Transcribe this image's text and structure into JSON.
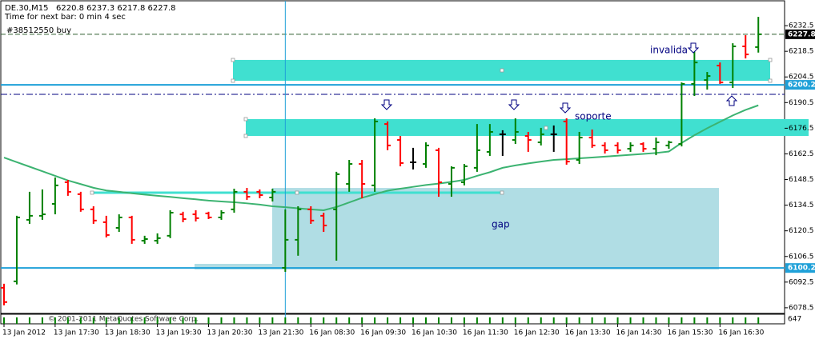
{
  "chart_data": {
    "type": "ohlc",
    "title": "DE.30,M15",
    "ohlc_text": "6220.8 6237.3 6217.8 6227.8",
    "timer": "Time for next bar: 0 min 4 sec",
    "order": "#38512550 buy",
    "copyright": "© 2001-2011 MetaQuotes Software Corp.",
    "subwindow_label": "647",
    "annotations": {
      "invalida": "invalida",
      "soporte": "soporte",
      "gap": "gap"
    },
    "up_color": "#008000",
    "down_color": "#ff0000",
    "doji_color": "#000000",
    "categories": [
      "13 Jan 2012",
      null,
      null,
      null,
      "13 Jan 17:30",
      null,
      null,
      null,
      "13 Jan 18:30",
      null,
      null,
      null,
      "13 Jan 19:30",
      null,
      null,
      null,
      "13 Jan 20:30",
      null,
      null,
      null,
      "13 Jan 21:30",
      null,
      null,
      null,
      "16 Jan 08:30",
      null,
      null,
      null,
      "16 Jan 09:30",
      null,
      null,
      null,
      "16 Jan 10:30",
      null,
      null,
      null,
      "16 Jan 11:30",
      null,
      null,
      null,
      "16 Jan 12:30",
      null,
      null,
      null,
      "16 Jan 13:30",
      null,
      null,
      null,
      "16 Jan 14:30",
      null,
      null,
      null,
      "16 Jan 15:30",
      null,
      null,
      null,
      "16 Jan 16:30",
      null,
      null,
      null
    ],
    "open": [
      6089.4,
      6092.9,
      6126.5,
      6128.7,
      6135.2,
      6147.0,
      6140.5,
      6132.2,
      6125.2,
      6122.1,
      6127.8,
      6115.1,
      6115.1,
      6117.8,
      6129.5,
      6129.5,
      6130.0,
      6127.8,
      6132.2,
      6141.8,
      6141.8,
      6138.7,
      6100.3,
      6115.6,
      6132.2,
      6128.7,
      6132.2,
      6146.1,
      6157.0,
      6145.3,
      6178.8,
      6170.1,
      6157.9,
      6157.0,
      6164.5,
      6146.1,
      6147.0,
      6154.9,
      6163.6,
      6173.2,
      6170.1,
      6172.3,
      6168.8,
      6173.2,
      6180.2,
      6159.2,
      6171.4,
      6167.1,
      6167.1,
      6165.3,
      6167.9,
      6165.3,
      6167.1,
      6167.9,
      6200.7,
      6202.8,
      6210.7,
      6201.5,
      6221.2,
      6220.8
    ],
    "high": [
      6091.6,
      6128.7,
      6141.8,
      6143.1,
      6149.6,
      6148.3,
      6141.8,
      6133.9,
      6128.7,
      6129.5,
      6128.7,
      6117.8,
      6119.1,
      6131.7,
      6130.9,
      6131.7,
      6130.9,
      6131.7,
      6143.5,
      6143.9,
      6143.1,
      6143.5,
      6132.2,
      6133.9,
      6133.9,
      6130.4,
      6152.7,
      6159.2,
      6159.2,
      6181.9,
      6180.2,
      6172.3,
      6165.8,
      6168.8,
      6165.8,
      6155.7,
      6157.0,
      6178.8,
      6178.8,
      6175.4,
      6181.9,
      6174.5,
      6176.7,
      6178.0,
      6181.9,
      6174.5,
      6175.8,
      6168.8,
      6168.8,
      6168.8,
      6168.8,
      6171.4,
      6169.7,
      6201.5,
      6221.2,
      6207.2,
      6212.4,
      6222.9,
      6227.3,
      6237.3
    ],
    "low": [
      6079.8,
      6091.2,
      6124.3,
      6126.5,
      6129.5,
      6139.6,
      6130.9,
      6124.3,
      6116.9,
      6119.9,
      6113.4,
      6113.4,
      6113.4,
      6116.5,
      6125.2,
      6125.6,
      6126.9,
      6126.5,
      6130.4,
      6137.4,
      6138.3,
      6136.5,
      6098.1,
      6106.9,
      6124.3,
      6119.9,
      6104.2,
      6141.8,
      6138.3,
      6141.8,
      6164.5,
      6155.7,
      6154.0,
      6154.9,
      6139.1,
      6139.1,
      6145.3,
      6152.7,
      6161.4,
      6161.4,
      6167.9,
      6163.6,
      6167.1,
      6163.6,
      6156.6,
      6157.0,
      6165.8,
      6162.7,
      6162.7,
      6163.6,
      6163.6,
      6161.8,
      6165.3,
      6166.6,
      6194.1,
      6197.6,
      6200.7,
      6198.5,
      6214.6,
      6217.8
    ],
    "close": [
      6081.6,
      6127.8,
      6128.7,
      6129.5,
      6145.3,
      6141.8,
      6132.2,
      6126.1,
      6118.2,
      6127.8,
      6115.6,
      6116.0,
      6116.5,
      6130.4,
      6126.9,
      6127.4,
      6127.8,
      6130.4,
      6141.8,
      6139.1,
      6140.0,
      6141.8,
      6115.6,
      6132.2,
      6126.1,
      6123.4,
      6151.4,
      6157.0,
      6146.1,
      6180.2,
      6167.1,
      6157.5,
      6157.9,
      6167.1,
      6147.0,
      6154.9,
      6155.7,
      6164.5,
      6174.5,
      6173.2,
      6174.5,
      6170.1,
      6173.2,
      6173.2,
      6158.3,
      6171.4,
      6167.1,
      6164.5,
      6164.5,
      6167.1,
      6165.3,
      6168.8,
      6168.8,
      6200.7,
      6212.4,
      6205.0,
      6201.5,
      6221.2,
      6216.8,
      6227.8
    ],
    "series": [
      {
        "color": "#3cb371",
        "values": [
          6160.5,
          6158.0,
          6155.5,
          6153,
          6150.5,
          6148,
          6146,
          6144,
          6142.5,
          6141.8,
          6141,
          6140.3,
          6139.6,
          6139,
          6138.3,
          6137.7,
          6137,
          6136.5,
          6136.1,
          6135.5,
          6134.8,
          6133.9,
          6133.4,
          6132.8,
          6132.2,
          6131.7,
          6133.5,
          6136,
          6138.5,
          6140.5,
          6142.4,
          6143.5,
          6144.5,
          6145.5,
          6146.3,
          6147.2,
          6148.3,
          6150.5,
          6152.5,
          6154.9,
          6156.2,
          6157.3,
          6158.3,
          6159.2,
          6159.6,
          6160.1,
          6160.5,
          6161,
          6161.5,
          6162,
          6162.5,
          6163,
          6163.8,
          6168.5,
          6172.7,
          6176.5,
          6180,
          6183.5,
          6186.5,
          6189
        ]
      }
    ],
    "levels": [
      {
        "value": 6227.8,
        "label": "6227.8",
        "color": "#2e5e2e",
        "style": "dash",
        "box": "#000000"
      },
      {
        "value": 6200.2,
        "label": "6200.2",
        "color": "#1ea0d8",
        "style": "solid",
        "box": "#1ea0d8"
      },
      {
        "value": 6100.2,
        "label": "6100.2",
        "color": "#1ea0d8",
        "style": "solid",
        "box": "#1ea0d8"
      },
      {
        "value": 6195.0,
        "color": "#000080",
        "style": "dashdot"
      }
    ],
    "zones": [
      {
        "top": 6213.8,
        "bottom": 6202.4,
        "color": "#40e0d0"
      },
      {
        "top": 6181.5,
        "bottom": 6172.3,
        "color": "#40e0d0"
      },
      {
        "top": 6143.9,
        "bottom": 6099.4,
        "color": "#b0dde4"
      }
    ],
    "ylim": [
      6075.4,
      6245.2
    ],
    "yticks": [
      6232.5,
      6218.5,
      6204.5,
      6190.5,
      6176.5,
      6162.5,
      6148.5,
      6134.5,
      6120.5,
      6106.5,
      6092.5,
      6078.5
    ]
  }
}
